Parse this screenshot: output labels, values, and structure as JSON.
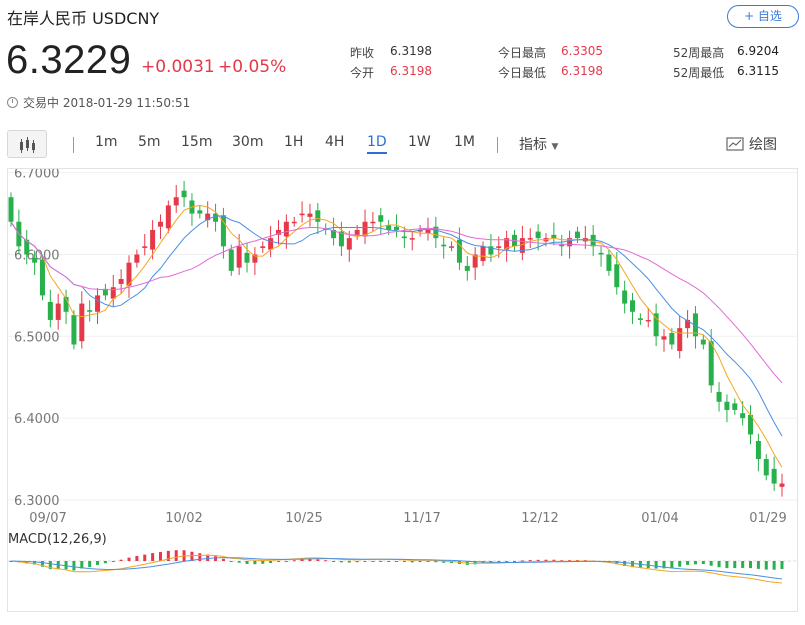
{
  "header": {
    "title": "在岸人民币  USDCNY",
    "watch_button": "+ 自选",
    "price": "6.3229",
    "change": "+0.0031",
    "change_pct": "+0.05%",
    "status": "交易中 2018-01-29 11:50:51"
  },
  "stats": [
    {
      "label": "昨收",
      "value": "6.3198",
      "color": "#222222"
    },
    {
      "label": "今开",
      "value": "6.3198",
      "color": "#e5394a"
    },
    {
      "label": "今日最高",
      "value": "6.3305",
      "color": "#e5394a"
    },
    {
      "label": "今日最低",
      "value": "6.3198",
      "color": "#e5394a"
    },
    {
      "label": "52周最高",
      "value": "6.9204",
      "color": "#222222"
    },
    {
      "label": "52周最低",
      "value": "6.3115",
      "color": "#222222"
    }
  ],
  "toolbar": {
    "periods": [
      "1m",
      "5m",
      "15m",
      "30m",
      "1H",
      "4H",
      "1D",
      "1W",
      "1M"
    ],
    "active_period": "1D",
    "indicator_label": "指标",
    "draw_label": "绘图"
  },
  "chart_data": {
    "type": "candlestick",
    "y_ticks": [
      "6.7000",
      "6.6000",
      "6.5000",
      "6.4000",
      "6.3000"
    ],
    "ylim": [
      6.2987,
      6.7045
    ],
    "x_ticks": [
      "09/07",
      "10/02",
      "10/25",
      "11/17",
      "12/12",
      "01/04",
      "01/29"
    ],
    "macd_label": "MACD(12,26,9)",
    "colors": {
      "up": "#e5394a",
      "down": "#27b04b",
      "ma_orange": "#f5a623",
      "ma_blue": "#4a90e2",
      "ma_pink": "#e36ad8"
    },
    "closes": [
      6.64,
      6.61,
      6.6,
      6.59,
      6.55,
      6.52,
      6.54,
      6.53,
      6.49,
      6.54,
      6.53,
      6.55,
      6.55,
      6.56,
      6.57,
      6.59,
      6.6,
      6.61,
      6.63,
      6.64,
      6.66,
      6.67,
      6.67,
      6.65,
      6.65,
      6.65,
      6.64,
      6.61,
      6.58,
      6.61,
      6.59,
      6.6,
      6.61,
      6.62,
      6.63,
      6.64,
      6.64,
      6.65,
      6.65,
      6.64,
      6.63,
      6.62,
      6.61,
      6.62,
      6.63,
      6.64,
      6.64,
      6.64,
      6.63,
      6.63,
      6.62,
      6.62,
      6.63,
      6.63,
      6.62,
      6.61,
      6.61,
      6.59,
      6.58,
      6.6,
      6.61,
      6.6,
      6.61,
      6.62,
      6.61,
      6.62,
      6.62,
      6.62,
      6.62,
      6.62,
      6.61,
      6.62,
      6.62,
      6.62,
      6.61,
      6.6,
      6.58,
      6.56,
      6.54,
      6.53,
      6.52,
      6.52,
      6.5,
      6.5,
      6.49,
      6.51,
      6.52,
      6.5,
      6.49,
      6.44,
      6.42,
      6.41,
      6.41,
      6.4,
      6.38,
      6.35,
      6.33,
      6.32,
      6.32
    ]
  }
}
